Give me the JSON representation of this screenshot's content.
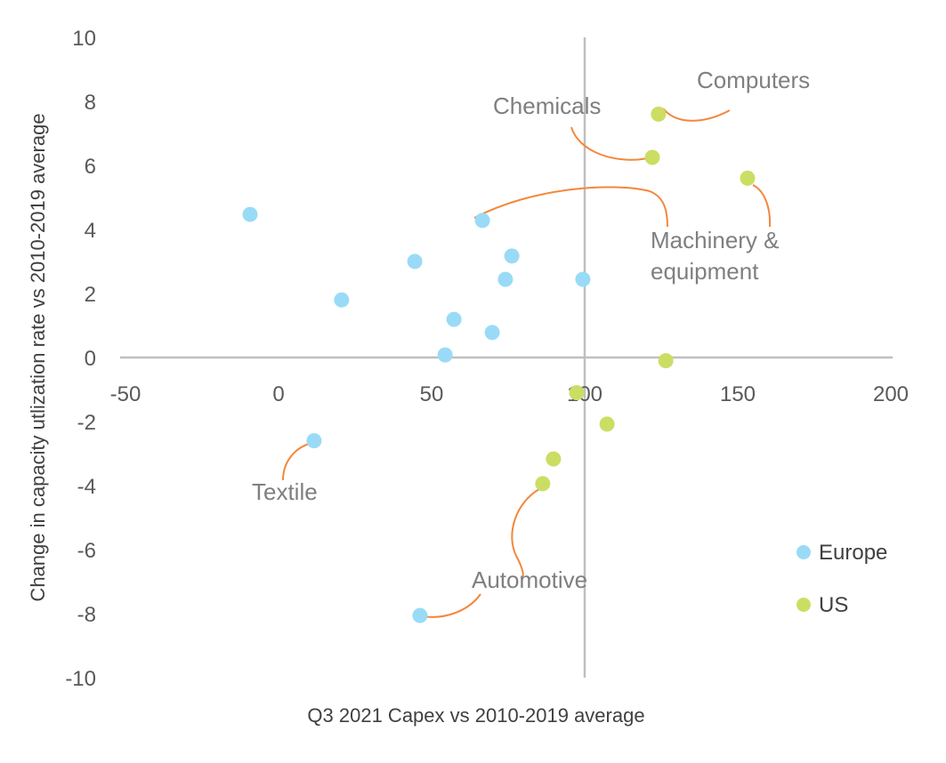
{
  "chart_data": {
    "type": "scatter",
    "title": "",
    "xlabel": "Q3 2021 Capex vs 2010-2019 average",
    "ylabel": "Change in capacity utlization rate vs 2010-2019 average",
    "xlim": [
      -50,
      200
    ],
    "ylim": [
      -10,
      10
    ],
    "xticks": [
      -50,
      0,
      50,
      100,
      150,
      200
    ],
    "yticks": [
      10,
      8,
      6,
      4,
      2,
      0,
      -2,
      -4,
      -6,
      -8,
      -10
    ],
    "grid": false,
    "crosshair_x": 100,
    "legend_position": "bottom-right",
    "series": [
      {
        "name": "Europe",
        "color": "#99dbf7",
        "points": [
          [
            -9.3,
            4.47
          ],
          [
            44.5,
            3.0
          ],
          [
            20.6,
            1.8
          ],
          [
            66.6,
            4.28
          ],
          [
            76.2,
            3.17
          ],
          [
            74.1,
            2.44
          ],
          [
            99.4,
            2.44
          ],
          [
            57.3,
            1.19
          ],
          [
            69.8,
            0.78
          ],
          [
            54.4,
            0.08
          ],
          [
            11.6,
            -2.6
          ],
          [
            46.2,
            -8.06
          ]
        ]
      },
      {
        "name": "US",
        "color": "#cbde63",
        "points": [
          [
            124.1,
            7.6
          ],
          [
            122.1,
            6.25
          ],
          [
            153.2,
            5.6
          ],
          [
            126.5,
            -0.1
          ],
          [
            97.4,
            -1.1
          ],
          [
            107.3,
            -2.08
          ],
          [
            89.8,
            -3.17
          ],
          [
            86.3,
            -3.94
          ]
        ]
      }
    ],
    "annotations": {
      "computers": "Computers",
      "chemicals": "Chemicals",
      "machinery_1": "Machinery &",
      "machinery_2": "equipment",
      "textile": "Textile",
      "automotive": "Automotive"
    },
    "annotation_color": "#f4873c"
  }
}
